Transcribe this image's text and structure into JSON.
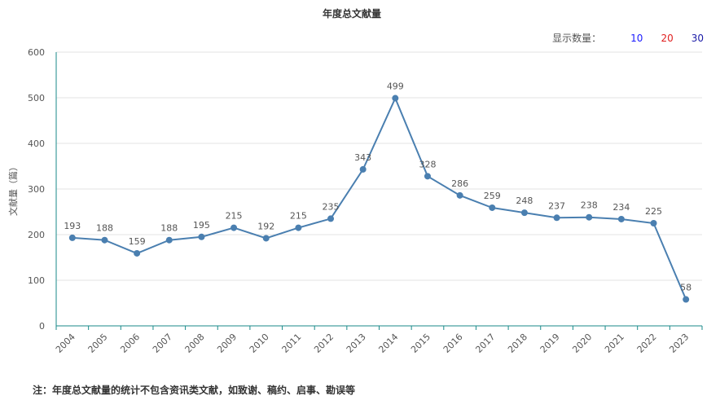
{
  "title": "年度总文献量",
  "count_selector": {
    "label": "显示数量：",
    "options": [
      {
        "label": "10",
        "color": "#1a1aff"
      },
      {
        "label": "20",
        "color": "#e02020"
      },
      {
        "label": "30",
        "color": "#1a1aa6"
      }
    ]
  },
  "footnote": "注：年度总文献量的统计不包含资讯类文献，如致谢、稿约、启事、勘误等",
  "colors": {
    "line": "#4a7fb0",
    "axis": "#1a8a8a",
    "grid": "#e3e3e3"
  },
  "chart_data": {
    "type": "line",
    "title": "年度总文献量",
    "xlabel": "",
    "ylabel": "文献量（篇）",
    "ylim": [
      0,
      600
    ],
    "yticks": [
      0,
      100,
      200,
      300,
      400,
      500,
      600
    ],
    "grid": true,
    "categories": [
      "2004",
      "2005",
      "2006",
      "2007",
      "2008",
      "2009",
      "2010",
      "2011",
      "2012",
      "2013",
      "2014",
      "2015",
      "2016",
      "2017",
      "2018",
      "2019",
      "2020",
      "2021",
      "2022",
      "2023"
    ],
    "values": [
      193,
      188,
      159,
      188,
      195,
      215,
      192,
      215,
      235,
      343,
      499,
      328,
      286,
      259,
      248,
      237,
      238,
      234,
      225,
      58
    ]
  }
}
